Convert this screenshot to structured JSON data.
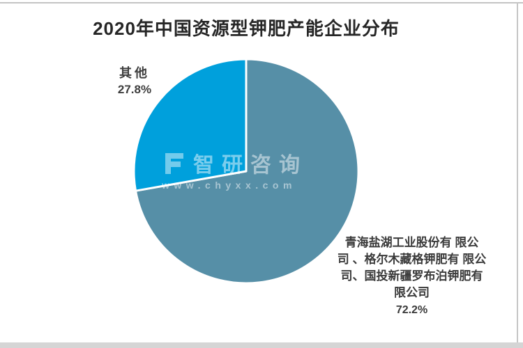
{
  "chart_data": {
    "type": "pie",
    "title": "2020年中国资源型钾肥产能企业分布",
    "categories": [
      "青海盐湖工业股份有限公司、格尔木藏格钾肥有限公司、国投新疆罗布泊钾肥有限公司",
      "其他"
    ],
    "values": [
      72.2,
      27.8
    ],
    "unit": "%",
    "start_angle": "12-oclock",
    "direction": "clockwise",
    "legend": "none",
    "labels_position": "outside",
    "slice_border_color": "#ffffff",
    "slices": [
      {
        "value": 72.2,
        "pct_label": "72.2%",
        "color": "#568fa7",
        "label_lines": [
          "青海盐湖工业股份有 限公",
          "司 、格尔木藏格钾肥有 限公",
          "司、国投新疆罗布泊钾肥有",
          "限公司"
        ]
      },
      {
        "value": 27.8,
        "pct_label": "27.8%",
        "color": "#00a0dc",
        "label_lines": [
          "其他"
        ]
      }
    ]
  },
  "watermark": {
    "logo": "zhiyan-consulting-logo",
    "text": "智研咨询",
    "url": "www.chyxx.com",
    "color": "#ffffff"
  },
  "frame": {
    "top_line_color": "#c4c4c4",
    "right_line_color": "#c6c6c6",
    "bottom_bar_color": "#d5d5d5"
  }
}
